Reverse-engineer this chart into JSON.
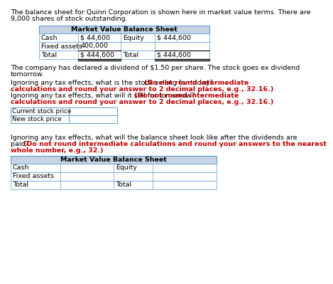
{
  "title_line1": "The balance sheet for Quinn Corporation is shown here in market value terms. There are",
  "title_line2": "9,000 shares of stock outstanding.",
  "table1_header": "Market Value Balance Sheet",
  "table1_rows": [
    [
      "Cash",
      "$ 44,600",
      "Equity",
      "$ 444,600"
    ],
    [
      "Fixed assets",
      "400,000",
      "",
      ""
    ],
    [
      "Total",
      "$ 444,600",
      "Total",
      "$ 444,600"
    ]
  ],
  "para1_line1": "The company has declared a dividend of $1.50 per share. The stock goes ex dividend",
  "para1_line2": "tomorrow.",
  "para2_b1": "Ignoring any tax effects, what is the stock selling for today? ",
  "para2_r1": "(Do not round intermediate",
  "para2_r1b": "calculations and round your answer to 2 decimal places, e.g., 32.16.)",
  "para2_b2": "Ignoring any tax effects, what will it sell for tomorrow? ",
  "para2_r2": "(Do not round intermediate",
  "para2_r2b": "calculations and round your answer to 2 decimal places, e.g., 32.16.)",
  "input_labels": [
    "Current stock price",
    "New stock price"
  ],
  "para3_b1": "Ignoring any tax effects, what will the balance sheet look like after the dividends are",
  "para3_b2": "paid? ",
  "para3_r2": "(Do not round intermediate calculations and round your answers to the nearest",
  "para3_r3": "whole number, e.g., 32.)",
  "table2_header": "Market Value Balance Sheet",
  "table2_rows": [
    [
      "Cash",
      "",
      "Equity",
      ""
    ],
    [
      "Fixed assets",
      "",
      "",
      ""
    ],
    [
      "Total",
      "",
      "Total",
      ""
    ]
  ],
  "header_bg": "#c8d4e3",
  "table_border": "#5b9bd5",
  "bg_color": "#ffffff",
  "black": "#000000",
  "red": "#c00000",
  "fs": 6.8,
  "ft": 6.8
}
